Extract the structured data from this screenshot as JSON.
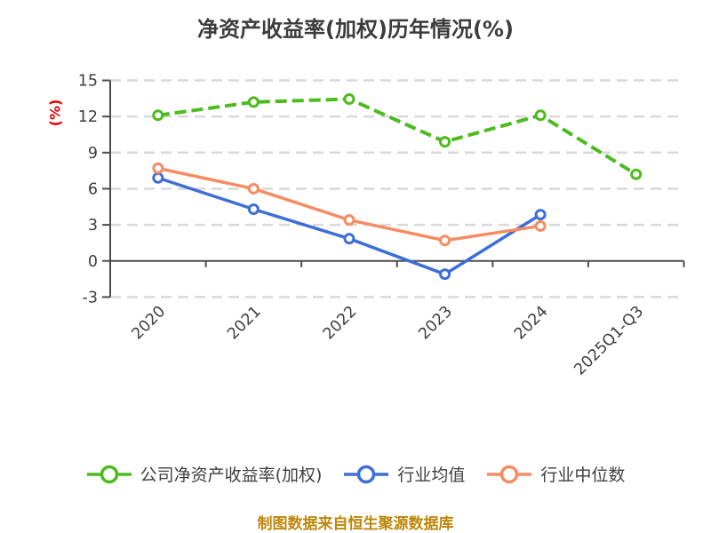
{
  "title": "净资产收益率(加权)历年情况(%)",
  "footer": "制图数据来自恒生聚源数据库",
  "colors": {
    "background": "#FFFFFF",
    "title": "#3C3C3C",
    "axis": "#4D4D4D",
    "grid": "#D9D9D9",
    "tick_label": "#3F3F3F",
    "ylabel": "#E60000",
    "footer": "#BE860B",
    "legend_text": "#3F3F3F",
    "series_green": "#4CBB1E",
    "series_blue": "#3D6ED7",
    "series_orange": "#F78B62",
    "marker_fill": "#FFFFFF"
  },
  "chart_data": {
    "type": "line",
    "title": "净资产收益率(加权)历年情况(%)",
    "xlabel": "",
    "ylabel": "(%)",
    "ylim": [
      -3,
      15
    ],
    "yticks": [
      15,
      12,
      9,
      6,
      3,
      0,
      -3
    ],
    "grid": "horizontal-dashed",
    "legend_position": "bottom",
    "categories": [
      "2020",
      "2021",
      "2022",
      "2023",
      "2024",
      "2025Q1-Q3"
    ],
    "series": [
      {
        "name": "公司净资产收益率(加权)",
        "color": "#4CBB1E",
        "line_style": "dashed",
        "values": [
          12.1,
          13.2,
          13.45,
          9.9,
          12.1,
          7.2
        ]
      },
      {
        "name": "行业均值",
        "color": "#3D6ED7",
        "line_style": "solid",
        "values": [
          6.9,
          4.3,
          1.85,
          -1.1,
          3.85,
          null
        ]
      },
      {
        "name": "行业中位数",
        "color": "#F78B62",
        "line_style": "solid",
        "values": [
          7.7,
          6.0,
          3.4,
          1.7,
          2.9,
          null
        ]
      }
    ]
  }
}
